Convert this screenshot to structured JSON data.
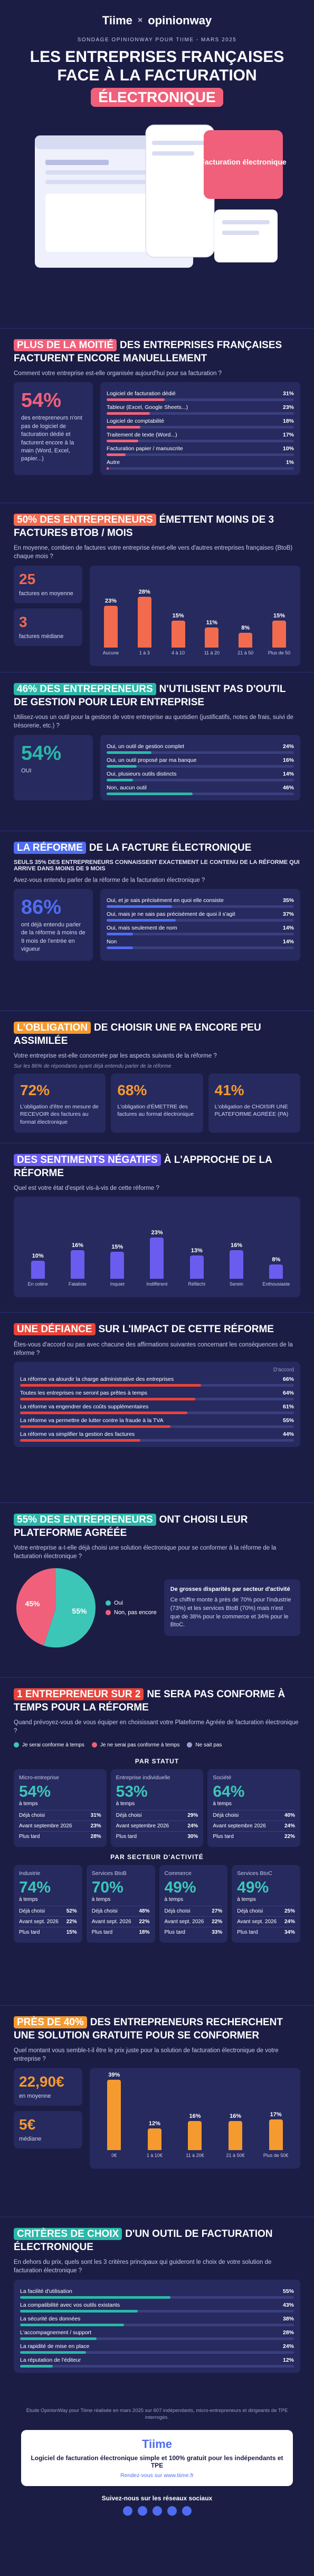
{
  "header": {
    "brand": "Tiime",
    "partner": "opinionway",
    "kicker": "SONDAGE OPINIONWAY POUR TIIME - MARS 2025",
    "title": "LES ENTREPRISES FRANÇAISES FACE À LA FACTURATION",
    "title_highlight": "ÉLECTRONIQUE",
    "mock_label": "Facturation électronique"
  },
  "sections": [
    {
      "kind": "list",
      "accent": "#f0607a",
      "highlight": "PLUS DE LA MOITIÉ",
      "rest": "DES ENTREPRISES FRANÇAISES FACTURENT ENCORE MANUELLEMENT",
      "question": "Comment votre entreprise est-elle organisée aujourd'hui pour sa facturation ?",
      "stat": "54%",
      "stat_text": "des entrepreneurs n'ont pas de logiciel de facturation dédié et facturent encore à la main (Word, Excel, papier...)",
      "items": [
        {
          "label": "Logiciel de facturation dédié",
          "value": 31,
          "value_label": "31%"
        },
        {
          "label": "Tableur (Excel, Google Sheets...)",
          "value": 23,
          "value_label": "23%"
        },
        {
          "label": "Logiciel de comptabilité",
          "value": 18,
          "value_label": "18%"
        },
        {
          "label": "Traitement de texte (Word...)",
          "value": 17,
          "value_label": "17%"
        },
        {
          "label": "Facturation papier / manuscrite",
          "value": 10,
          "value_label": "10%"
        },
        {
          "label": "Autre",
          "value": 1,
          "value_label": "1%"
        }
      ]
    },
    {
      "kind": "columns",
      "accent": "#f26b4f",
      "highlight": "50% DES ENTREPRENEURS",
      "rest": "ÉMETTENT MOINS DE 3 FACTURES BTOB / MOIS",
      "question": "En moyenne, combien de factures votre entreprise émet-elle vers d'autres entreprises françaises (BtoB) chaque mois ?",
      "stats": [
        {
          "value": "25",
          "text": "factures en moyenne"
        },
        {
          "value": "3",
          "text": "factures médiane"
        }
      ],
      "columns": [
        {
          "label": "Aucune",
          "value": 23,
          "value_label": "23%"
        },
        {
          "label": "1 à 3",
          "value": 28,
          "value_label": "28%"
        },
        {
          "label": "4 à 10",
          "value": 15,
          "value_label": "15%"
        },
        {
          "label": "11 à 20",
          "value": 11,
          "value_label": "11%"
        },
        {
          "label": "21 à 50",
          "value": 8,
          "value_label": "8%"
        },
        {
          "label": "Plus de 50",
          "value": 15,
          "value_label": "15%"
        }
      ]
    },
    {
      "kind": "list",
      "accent": "#2bb8a8",
      "highlight": "46% DES ENTREPRENEURS",
      "rest": "N'UTILISENT PAS D'OUTIL DE GESTION POUR LEUR ENTREPRISE",
      "question": "Utilisez-vous un outil pour la gestion de votre entreprise au quotidien (justificatifs, notes de frais, suivi de trésorerie, etc.) ?",
      "stat": "54%",
      "stat_text": "OUI",
      "items": [
        {
          "label": "Oui, un outil de gestion complet",
          "value": 24,
          "value_label": "24%"
        },
        {
          "label": "Oui, un outil proposé par ma banque",
          "value": 16,
          "value_label": "16%"
        },
        {
          "label": "Oui, plusieurs outils distincts",
          "value": 14,
          "value_label": "14%"
        },
        {
          "label": "Non, aucun outil",
          "value": 46,
          "value_label": "46%"
        }
      ]
    },
    {
      "kind": "list",
      "accent": "#4f6df0",
      "highlight": "LA RÉFORME",
      "rest": "DE LA FACTURE ÉLECTRONIQUE",
      "subhead": "SEULS 35% DES ENTREPRENEURS CONNAISSENT EXACTEMENT LE CONTENU DE LA RÉFORME QUI ARRIVE DANS MOINS DE 9 MOIS",
      "question": "Avez-vous entendu parler de la réforme de la facturation électronique ?",
      "stat": "86%",
      "stat_text": "ont déjà entendu parler de la réforme à moins de 9 mois de l'entrée en vigueur",
      "items": [
        {
          "label": "Oui, et je sais précisément en quoi elle consiste",
          "value": 35,
          "value_label": "35%"
        },
        {
          "label": "Oui, mais je ne sais pas précisément de quoi il s'agit",
          "value": 37,
          "value_label": "37%"
        },
        {
          "label": "Oui, mais seulement de nom",
          "value": 14,
          "value_label": "14%"
        },
        {
          "label": "Non",
          "value": 14,
          "value_label": "14%"
        }
      ]
    },
    {
      "kind": "boxes",
      "accent": "#f59a2f",
      "highlight": "L'OBLIGATION",
      "rest": "DE CHOISIR UNE PA ENCORE PEU ASSIMILÉE",
      "question": "Votre entreprise est-elle concernée par les aspects suivants de la réforme ?",
      "note": "Sur les 86% de répondants ayant déjà entendu parler de la réforme",
      "boxes": [
        {
          "stat": "72%",
          "text": "L'obligation d'être en mesure de RECEVOIR des factures au format électronique"
        },
        {
          "stat": "68%",
          "text": "L'obligation d'ÉMETTRE des factures au format électronique"
        },
        {
          "stat": "41%",
          "text": "L'obligation de CHOISIR UNE PLATEFORME AGRÉÉE (PA)"
        }
      ]
    },
    {
      "kind": "columns",
      "accent": "#6b5cf0",
      "highlight": "DES SENTIMENTS NÉGATIFS",
      "rest": "À L'APPROCHE DE LA RÉFORME",
      "question": "Quel est votre état d'esprit vis-à-vis de cette réforme ?",
      "columns": [
        {
          "label": "En colère",
          "value": 10,
          "value_label": "10%"
        },
        {
          "label": "Fataliste",
          "value": 16,
          "value_label": "16%"
        },
        {
          "label": "Inquiet",
          "value": 15,
          "value_label": "15%"
        },
        {
          "label": "Indifférent",
          "value": 23,
          "value_label": "23%"
        },
        {
          "label": "Réfléchi",
          "value": 13,
          "value_label": "13%"
        },
        {
          "label": "Serein",
          "value": 16,
          "value_label": "16%"
        },
        {
          "label": "Enthousiaste",
          "value": 8,
          "value_label": "8%"
        }
      ]
    },
    {
      "kind": "list",
      "accent": "#e8433a",
      "highlight": "UNE DÉFIANCE",
      "rest": "SUR L'IMPACT DE CETTE RÉFORME",
      "question": "Êtes-vous d'accord ou pas avec chacune des affirmations suivantes concernant les conséquences de la réforme ?",
      "column_head": "D'accord",
      "items": [
        {
          "label": "La réforme va alourdir la charge administrative des entreprises",
          "value": 66,
          "value_label": "66%"
        },
        {
          "label": "Toutes les entreprises ne seront pas prêtes à temps",
          "value": 64,
          "value_label": "64%"
        },
        {
          "label": "La réforme va engendrer des coûts supplémentaires",
          "value": 61,
          "value_label": "61%"
        },
        {
          "label": "La réforme va permettre de lutter contre la fraude à la TVA",
          "value": 55,
          "value_label": "55%"
        },
        {
          "label": "La réforme va simplifier la gestion des factures",
          "value": 44,
          "value_label": "44%"
        }
      ]
    },
    {
      "kind": "pie",
      "accent": "#2bb8a8",
      "highlight": "55% DES ENTREPRENEURS",
      "rest": "ONT CHOISI LEUR PLATEFORME AGRÉÉE",
      "question": "Votre entreprise a-t-elle déjà choisi une solution électronique pour se conformer à la réforme de la facturation électronique ?",
      "slices": [
        {
          "name": "Oui",
          "value": 55,
          "value_label": "55%",
          "color": "#3cc6b8"
        },
        {
          "name": "Non, pas encore",
          "value": 45,
          "value_label": "45%",
          "color": "#f0607a"
        }
      ],
      "text_title": "De grosses disparités par secteur d'activité",
      "text": "Ce chiffre monte à près de 70% pour l'industrie (73%) et les services BtoB (70%) mais n'est que de 38% pour le commerce et 34% pour le BtoC."
    },
    {
      "kind": "cards",
      "accent": "#e8433a",
      "highlight": "1 ENTREPRENEUR SUR 2",
      "rest": "NE SERA PAS CONFORME À TEMPS POUR LA RÉFORME",
      "question": "Quand prévoyez-vous de vous équiper en choisissant votre Plateforme Agréée de facturation électronique ?",
      "legend": [
        {
          "name": "Je serai conforme à temps",
          "color": "#3cc6b8"
        },
        {
          "name": "Je ne serai pas conforme à temps",
          "color": "#f0607a"
        },
        {
          "name": "Ne sait pas",
          "color": "#9aa0c8"
        }
      ],
      "groups": [
        {
          "title": "PAR STATUT",
          "cards": [
            {
              "name": "Micro-entreprise",
              "stat": "54%",
              "caption": "à temps",
              "rows": [
                {
                  "label": "Déjà choisi",
                  "value_label": "31%"
                },
                {
                  "label": "Avant septembre 2026",
                  "value_label": "23%"
                },
                {
                  "label": "Plus tard",
                  "value_label": "28%"
                }
              ]
            },
            {
              "name": "Entreprise individuelle",
              "stat": "53%",
              "caption": "à temps",
              "rows": [
                {
                  "label": "Déjà choisi",
                  "value_label": "29%"
                },
                {
                  "label": "Avant septembre 2026",
                  "value_label": "24%"
                },
                {
                  "label": "Plus tard",
                  "value_label": "30%"
                }
              ]
            },
            {
              "name": "Société",
              "stat": "64%",
              "caption": "à temps",
              "rows": [
                {
                  "label": "Déjà choisi",
                  "value_label": "40%"
                },
                {
                  "label": "Avant septembre 2026",
                  "value_label": "24%"
                },
                {
                  "label": "Plus tard",
                  "value_label": "22%"
                }
              ]
            }
          ]
        },
        {
          "title": "PAR SECTEUR D'ACTIVITÉ",
          "cards": [
            {
              "name": "Industrie",
              "stat": "74%",
              "caption": "à temps",
              "rows": [
                {
                  "label": "Déjà choisi",
                  "value_label": "52%"
                },
                {
                  "label": "Avant sept. 2026",
                  "value_label": "22%"
                },
                {
                  "label": "Plus tard",
                  "value_label": "15%"
                }
              ]
            },
            {
              "name": "Services BtoB",
              "stat": "70%",
              "caption": "à temps",
              "rows": [
                {
                  "label": "Déjà choisi",
                  "value_label": "48%"
                },
                {
                  "label": "Avant sept. 2026",
                  "value_label": "22%"
                },
                {
                  "label": "Plus tard",
                  "value_label": "18%"
                }
              ]
            },
            {
              "name": "Commerce",
              "stat": "49%",
              "caption": "à temps",
              "rows": [
                {
                  "label": "Déjà choisi",
                  "value_label": "27%"
                },
                {
                  "label": "Avant sept. 2026",
                  "value_label": "22%"
                },
                {
                  "label": "Plus tard",
                  "value_label": "33%"
                }
              ]
            },
            {
              "name": "Services BtoC",
              "stat": "49%",
              "caption": "à temps",
              "rows": [
                {
                  "label": "Déjà choisi",
                  "value_label": "25%"
                },
                {
                  "label": "Avant sept. 2026",
                  "value_label": "24%"
                },
                {
                  "label": "Plus tard",
                  "value_label": "34%"
                }
              ]
            }
          ]
        }
      ]
    },
    {
      "kind": "columns",
      "accent": "#f59a2f",
      "highlight": "PRÈS DE 40%",
      "rest": "DES ENTREPRENEURS RECHERCHENT UNE SOLUTION GRATUITE POUR SE CONFORMER",
      "question": "Quel montant vous semble-t-il être le prix juste pour la solution de facturation électronique de votre entreprise ?",
      "stats": [
        {
          "value": "22,90€",
          "text": "en moyenne"
        },
        {
          "value": "5€",
          "text": "médiane"
        }
      ],
      "columns": [
        {
          "label": "0€",
          "value": 39,
          "value_label": "39%"
        },
        {
          "label": "1 à 10€",
          "value": 12,
          "value_label": "12%"
        },
        {
          "label": "11 à 20€",
          "value": 16,
          "value_label": "16%"
        },
        {
          "label": "21 à 50€",
          "value": 16,
          "value_label": "16%"
        },
        {
          "label": "Plus de 50€",
          "value": 17,
          "value_label": "17%"
        }
      ]
    },
    {
      "kind": "list",
      "accent": "#2bb8a8",
      "highlight": "CRITÈRES DE CHOIX",
      "rest": "D'UN OUTIL DE FACTURATION ÉLECTRONIQUE",
      "question": "En dehors du prix, quels sont les 3 critères principaux qui guideront le choix de votre solution de facturation électronique ?",
      "items": [
        {
          "label": "La facilité d'utilisation",
          "value": 55,
          "value_label": "55%"
        },
        {
          "label": "La compatibilité avec vos outils existants",
          "value": 43,
          "value_label": "43%"
        },
        {
          "label": "La sécurité des données",
          "value": 38,
          "value_label": "38%"
        },
        {
          "label": "L'accompagnement / support",
          "value": 28,
          "value_label": "28%"
        },
        {
          "label": "La rapidité de mise en place",
          "value": 24,
          "value_label": "24%"
        },
        {
          "label": "La réputation de l'éditeur",
          "value": 12,
          "value_label": "12%"
        }
      ]
    }
  ],
  "footer": {
    "method": "Étude OpinionWay pour Tiime réalisée en mars 2025 sur 607 indépendants, micro-entrepreneurs et dirigeants de TPE interrogés.",
    "brand": "Tiime",
    "tagline": "Logiciel de facturation électronique simple et 100% gratuit pour les indépendants et TPE",
    "link": "Rendez-vous sur www.tiime.fr",
    "social": "Suivez-nous sur les réseaux sociaux"
  }
}
